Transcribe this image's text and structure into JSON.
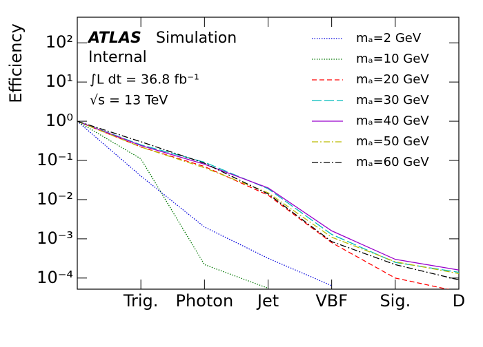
{
  "chart_data": {
    "type": "line",
    "y_label": "Efficiency",
    "annotations": [
      "ATLAS",
      "Simulation",
      "Internal",
      "∫L dt = 36.8 fb⁻¹",
      "√s = 13 TeV"
    ],
    "categories": [
      null,
      "Trig.",
      "Photon",
      "Jet",
      "VBF",
      "Sig.",
      "D"
    ],
    "log_y": true,
    "ylim": [
      5.2e-05,
      450
    ],
    "yticks": [
      {
        "value": 100,
        "label": "10²"
      },
      {
        "value": 10,
        "label": "10¹"
      },
      {
        "value": 1,
        "label": "10⁰"
      },
      {
        "value": 0.1,
        "label": "10⁻¹"
      },
      {
        "value": 0.01,
        "label": "10⁻²"
      },
      {
        "value": 0.001,
        "label": "10⁻³"
      },
      {
        "value": 0.0001,
        "label": "10⁻⁴"
      }
    ],
    "legend": "upper right",
    "series": [
      {
        "name": "mₐ=2 GeV",
        "color": "#0000dd",
        "linestyle": "dotted",
        "values": [
          1,
          0.04,
          0.002,
          0.00032,
          6.4e-05,
          null,
          null
        ]
      },
      {
        "name": "mₐ=10 GeV",
        "color": "#007700",
        "linestyle": "dotted",
        "values": [
          1,
          0.11,
          0.00022,
          5.5e-05,
          null,
          null,
          null
        ]
      },
      {
        "name": "mₐ=20 GeV",
        "color": "#ff0000",
        "linestyle": "dashed",
        "values": [
          1,
          0.22,
          0.07,
          0.013,
          0.0008,
          0.0001,
          4.5e-05
        ]
      },
      {
        "name": "mₐ=30 GeV",
        "color": "#00bbbb",
        "linestyle": "longdash",
        "values": [
          1,
          0.25,
          0.09,
          0.019,
          0.0013,
          0.00025,
          0.00014
        ]
      },
      {
        "name": "mₐ=40 GeV",
        "color": "#9900cc",
        "linestyle": "solid",
        "values": [
          1,
          0.24,
          0.08,
          0.02,
          0.0016,
          0.0003,
          0.00016
        ]
      },
      {
        "name": "mₐ=50 GeV",
        "color": "#bbbb00",
        "linestyle": "dashdot",
        "values": [
          1,
          0.22,
          0.065,
          0.015,
          0.0011,
          0.00026,
          0.00013
        ]
      },
      {
        "name": "mₐ=60 GeV",
        "color": "#000000",
        "linestyle": "dashdot",
        "values": [
          1,
          0.3,
          0.085,
          0.014,
          0.00085,
          0.00022,
          9e-05
        ]
      }
    ]
  }
}
